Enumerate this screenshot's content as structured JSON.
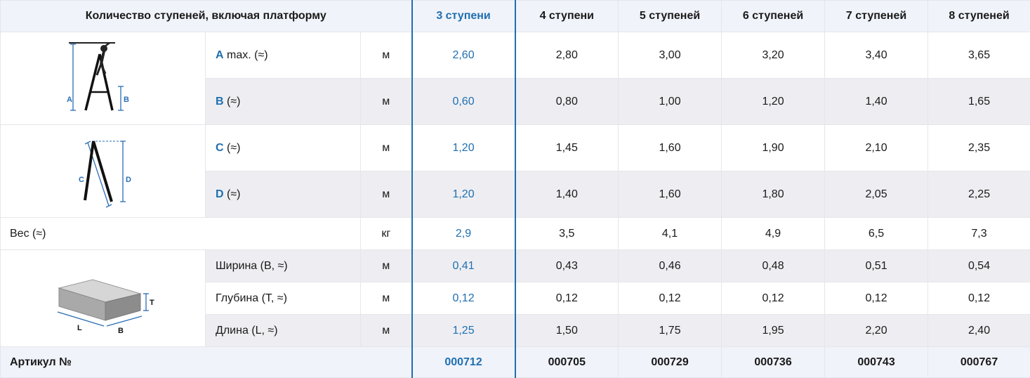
{
  "header": {
    "title": "Количество ступеней, включая платформу",
    "columns": [
      "3 ступени",
      "4 ступени",
      "5 ступеней",
      "6 ступеней",
      "7 ступеней",
      "8 ступеней"
    ]
  },
  "highlight_color": "#1f6fb0",
  "rows": [
    {
      "letter": "A",
      "label": "max. (≈)",
      "unit": "м",
      "values": [
        "2,60",
        "2,80",
        "3,00",
        "3,20",
        "3,40",
        "3,65"
      ]
    },
    {
      "letter": "B",
      "label": "(≈)",
      "unit": "м",
      "values": [
        "0,60",
        "0,80",
        "1,00",
        "1,20",
        "1,40",
        "1,65"
      ]
    },
    {
      "letter": "C",
      "label": "(≈)",
      "unit": "м",
      "values": [
        "1,20",
        "1,45",
        "1,60",
        "1,90",
        "2,10",
        "2,35"
      ]
    },
    {
      "letter": "D",
      "label": "(≈)",
      "unit": "м",
      "values": [
        "1,20",
        "1,40",
        "1,60",
        "1,80",
        "2,05",
        "2,25"
      ]
    },
    {
      "label": "Вес (≈)",
      "unit": "кг",
      "values": [
        "2,9",
        "3,5",
        "4,1",
        "4,9",
        "6,5",
        "7,3"
      ]
    },
    {
      "label": "Ширина (B, ≈)",
      "unit": "м",
      "values": [
        "0,41",
        "0,43",
        "0,46",
        "0,48",
        "0,51",
        "0,54"
      ]
    },
    {
      "label": "Глубина (T, ≈)",
      "unit": "м",
      "values": [
        "0,12",
        "0,12",
        "0,12",
        "0,12",
        "0,12",
        "0,12"
      ]
    },
    {
      "label": "Длина (L, ≈)",
      "unit": "м",
      "values": [
        "1,25",
        "1,50",
        "1,75",
        "1,95",
        "2,20",
        "2,40"
      ]
    }
  ],
  "footer": {
    "label": "Артикул №",
    "values": [
      "000712",
      "000705",
      "000729",
      "000736",
      "000743",
      "000767"
    ]
  },
  "diagrams": {
    "ladder_ab": {
      "labels": [
        "A",
        "B"
      ]
    },
    "ladder_cd": {
      "labels": [
        "C",
        "D"
      ]
    },
    "package": {
      "labels": [
        "T",
        "L",
        "B"
      ]
    }
  }
}
